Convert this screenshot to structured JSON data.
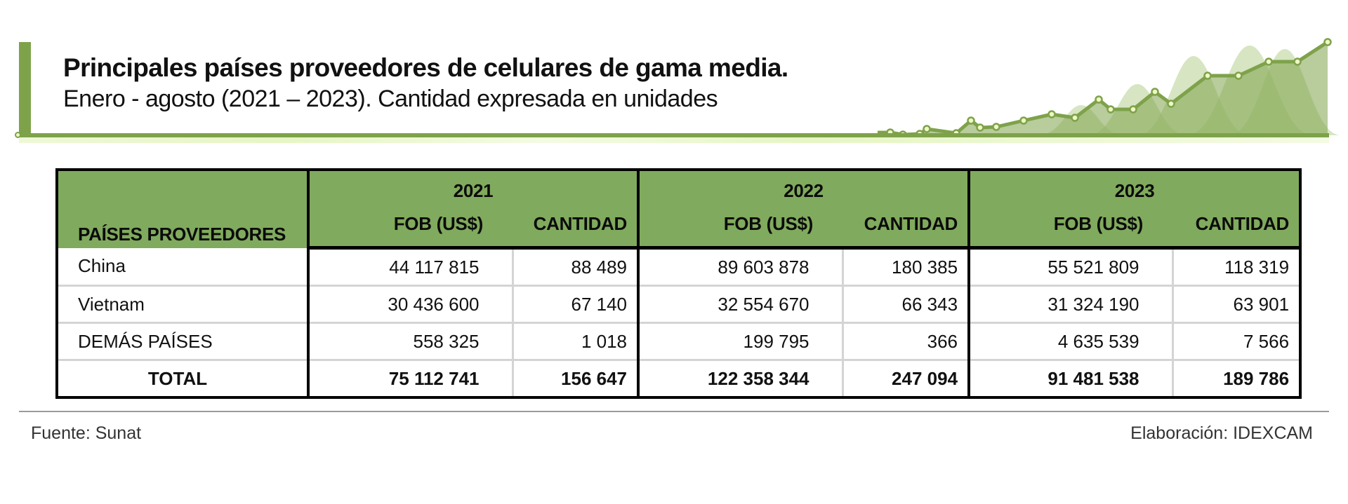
{
  "header": {
    "title": "Principales países proveedores de celulares de gama media.",
    "subtitle": "Enero - agosto (2021 – 2023). Cantidad expresada en unidades",
    "accent_color": "#7ea24a",
    "decoration": "rising-line-sparkline"
  },
  "table": {
    "country_header": "PAÍSES PROVEEDORES",
    "years": [
      "2021",
      "2022",
      "2023"
    ],
    "sub_headers": {
      "fob": "FOB (US$)",
      "qty": "CANTIDAD"
    },
    "header_color": "#80aa5d",
    "rows": [
      {
        "country": "China",
        "v": [
          "44 117 815",
          "88 489",
          "89 603 878",
          "180 385",
          "55 521 809",
          "118 319"
        ]
      },
      {
        "country": "Vietnam",
        "v": [
          "30 436 600",
          "67 140",
          "32 554 670",
          "66 343",
          "31 324 190",
          "63 901"
        ]
      },
      {
        "country": "DEMÁS PAÍSES",
        "v": [
          "558 325",
          "1 018",
          "199 795",
          "366",
          "4 635 539",
          "7 566"
        ]
      }
    ],
    "total": {
      "country": "TOTAL",
      "v": [
        "75 112 741",
        "156 647",
        "122 358 344",
        "247 094",
        "91 481 538",
        "189 786"
      ]
    }
  },
  "footer": {
    "source": "Fuente: Sunat",
    "credit": "Elaboración: IDEXCAM"
  }
}
